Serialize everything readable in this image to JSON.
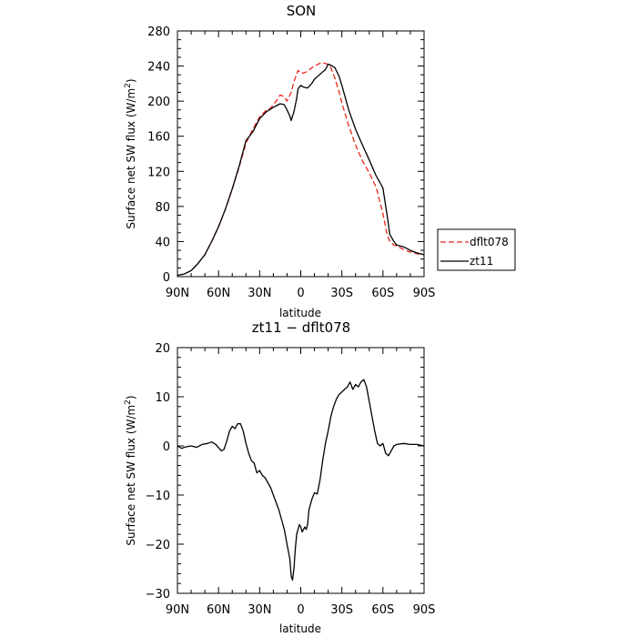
{
  "chart_data": [
    {
      "type": "line",
      "title": "SON",
      "xlabel": "latitude",
      "ylabel": "Surface net SW flux (W/m²)",
      "xlim": [
        90,
        -90
      ],
      "ylim": [
        0,
        280
      ],
      "xticks": [
        90,
        60,
        30,
        0,
        -30,
        -60,
        -90
      ],
      "xtick_labels": [
        "90N",
        "60N",
        "30N",
        "0",
        "30S",
        "60S",
        "90S"
      ],
      "yticks": [
        0,
        40,
        80,
        120,
        160,
        200,
        240,
        280
      ],
      "ytick_labels": [
        "0",
        "40",
        "80",
        "120",
        "160",
        "200",
        "240",
        "280"
      ],
      "legend": {
        "placement": "right",
        "entries": [
          "dflt078",
          "zt11"
        ]
      },
      "series": [
        {
          "name": "dflt078",
          "color": "#e8251c",
          "dash": true,
          "x": [
            90,
            85,
            80,
            75,
            70,
            65,
            60,
            55,
            50,
            45,
            40,
            35,
            30,
            25,
            22,
            20,
            17,
            15,
            12,
            10,
            7,
            5,
            2,
            0,
            -2,
            -5,
            -8,
            -10,
            -15,
            -20,
            -22,
            -25,
            -28,
            -30,
            -35,
            -40,
            -45,
            -50,
            -55,
            -60,
            -63,
            -65,
            -68,
            -70,
            -75,
            -80,
            -85,
            -90
          ],
          "y": [
            1.5,
            3,
            7,
            15,
            25,
            40,
            57,
            77,
            100,
            125,
            152,
            168,
            182,
            190,
            192,
            196,
            202,
            207,
            205,
            200,
            210,
            222,
            235,
            232,
            232,
            234,
            238,
            240,
            244,
            242,
            238,
            226,
            210,
            198,
            172,
            150,
            132,
            118,
            102,
            72,
            48,
            40,
            36,
            35,
            31,
            28,
            26,
            25
          ]
        },
        {
          "name": "zt11",
          "color": "#000000",
          "dash": false,
          "x": [
            90,
            85,
            80,
            75,
            70,
            65,
            60,
            55,
            50,
            45,
            40,
            35,
            30,
            25,
            20,
            15,
            12,
            10,
            8,
            7,
            5,
            3,
            2,
            0,
            -2,
            -5,
            -8,
            -10,
            -15,
            -18,
            -20,
            -22,
            -25,
            -28,
            -30,
            -35,
            -40,
            -45,
            -50,
            -55,
            -60,
            -63,
            -65,
            -68,
            -70,
            -75,
            -80,
            -85,
            -90
          ],
          "y": [
            1.5,
            3,
            7,
            15,
            25,
            40,
            57,
            77,
            100,
            126,
            155,
            165,
            180,
            188,
            193,
            197,
            196,
            190,
            183,
            178,
            188,
            203,
            214,
            218,
            216,
            215,
            220,
            225,
            232,
            236,
            242,
            241,
            238,
            228,
            218,
            190,
            168,
            150,
            133,
            115,
            101,
            70,
            48,
            40,
            36,
            34,
            30,
            27,
            25
          ]
        }
      ]
    },
    {
      "type": "line",
      "title": "zt11 − dflt078",
      "xlabel": "latitude",
      "ylabel": "Surface net SW flux (W/m²)",
      "xlim": [
        90,
        -90
      ],
      "ylim": [
        -30,
        20
      ],
      "xticks": [
        90,
        60,
        30,
        0,
        -30,
        -60,
        -90
      ],
      "xtick_labels": [
        "90N",
        "60N",
        "30N",
        "0",
        "30S",
        "60S",
        "90S"
      ],
      "yticks": [
        -30,
        -20,
        -10,
        0,
        10,
        20
      ],
      "ytick_labels": [
        "−30",
        "−20",
        "−10",
        "0",
        "10",
        "20"
      ],
      "series": [
        {
          "color": "#000000",
          "dash": false,
          "x": [
            90,
            87,
            84,
            80,
            76,
            72,
            68,
            65,
            62,
            58,
            56,
            54,
            52,
            50,
            48,
            46,
            44,
            42,
            40,
            38,
            36,
            34,
            32,
            30,
            28,
            26,
            24,
            22,
            20,
            18,
            16,
            14,
            12,
            10,
            8,
            7,
            6,
            5,
            4,
            3,
            2,
            1,
            0,
            -1,
            -2,
            -3,
            -4,
            -5,
            -6,
            -8,
            -10,
            -12,
            -14,
            -16,
            -18,
            -20,
            -22,
            -24,
            -26,
            -28,
            -30,
            -32,
            -34,
            -36,
            -38,
            -40,
            -42,
            -44,
            -46,
            -48,
            -50,
            -52,
            -54,
            -56,
            -58,
            -60,
            -62,
            -64,
            -66,
            -68,
            -70,
            -75,
            -80,
            -85,
            -90
          ],
          "y": [
            0,
            -0.5,
            -0.2,
            0,
            -0.3,
            0.3,
            0.5,
            0.8,
            0.3,
            -1.0,
            -0.7,
            1.0,
            3.0,
            4.0,
            3.5,
            4.5,
            4.5,
            3.0,
            0.5,
            -1.5,
            -3.0,
            -3.5,
            -5.5,
            -5.0,
            -6.0,
            -6.5,
            -7.5,
            -8.5,
            -10.0,
            -11.5,
            -13.0,
            -15.0,
            -17.0,
            -20.0,
            -23.0,
            -26.5,
            -27.3,
            -25.0,
            -21.0,
            -18.0,
            -17.0,
            -16.0,
            -16.5,
            -17.5,
            -17.0,
            -16.5,
            -17.0,
            -16.0,
            -13.0,
            -11.0,
            -9.5,
            -9.8,
            -7.0,
            -3.0,
            0.5,
            3.0,
            6.0,
            8.0,
            9.5,
            10.5,
            11.0,
            11.5,
            12.0,
            13.0,
            11.5,
            12.5,
            12.0,
            13.0,
            13.5,
            12.0,
            9.0,
            6.0,
            3.0,
            0.5,
            0,
            0.5,
            -1.5,
            -2.0,
            -1.0,
            0,
            0.3,
            0.5,
            0.3,
            0.3,
            0
          ]
        }
      ]
    }
  ]
}
